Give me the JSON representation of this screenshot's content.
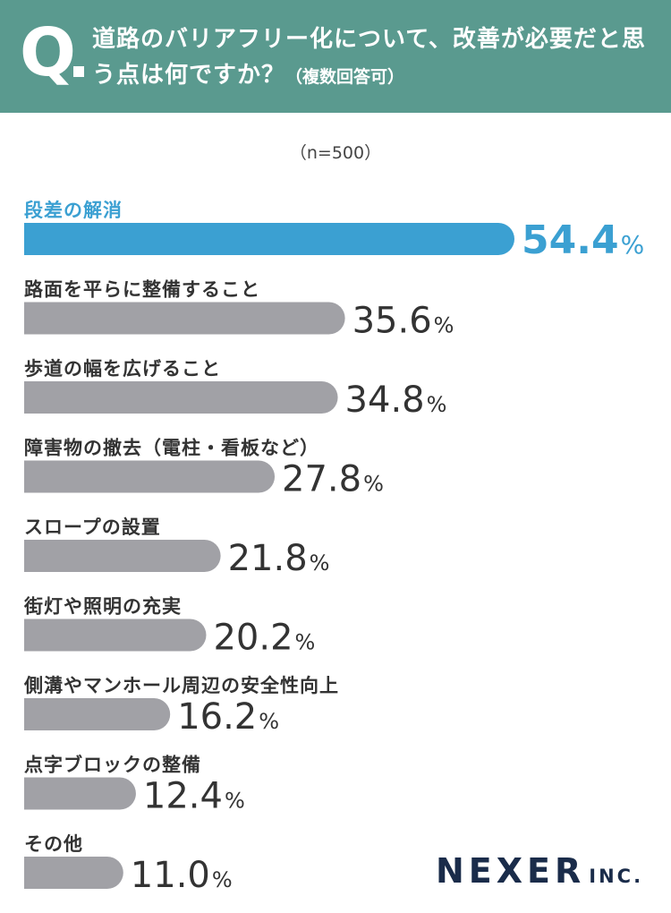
{
  "header": {
    "q_mark": "Q",
    "question": "道路のバリアフリー化について、改善が必要だと思う点は何ですか？",
    "note": "（複数回答可）"
  },
  "sample": "（n=500）",
  "brand": {
    "name": "NEXER",
    "suffix": "INC."
  },
  "colors": {
    "header_bg": "#5a9a8f",
    "highlight": "#3ba0d2",
    "bar": "#a1a1a6",
    "text": "#333333"
  },
  "chart_data": {
    "type": "bar",
    "orientation": "horizontal",
    "unit": "%",
    "categories": [
      "段差の解消",
      "路面を平らに整備すること",
      "歩道の幅を広げること",
      "障害物の撤去（電柱・看板など）",
      "スロープの設置",
      "街灯や照明の充実",
      "側溝やマンホール周辺の安全性向上",
      "点字ブロックの整備",
      "その他"
    ],
    "values": [
      54.4,
      35.6,
      34.8,
      27.8,
      21.8,
      20.2,
      16.2,
      12.4,
      11.0
    ],
    "value_labels": [
      "54.4",
      "35.6",
      "34.8",
      "27.8",
      "21.8",
      "20.2",
      "16.2",
      "12.4",
      "11.0"
    ],
    "highlight_index": 0
  }
}
